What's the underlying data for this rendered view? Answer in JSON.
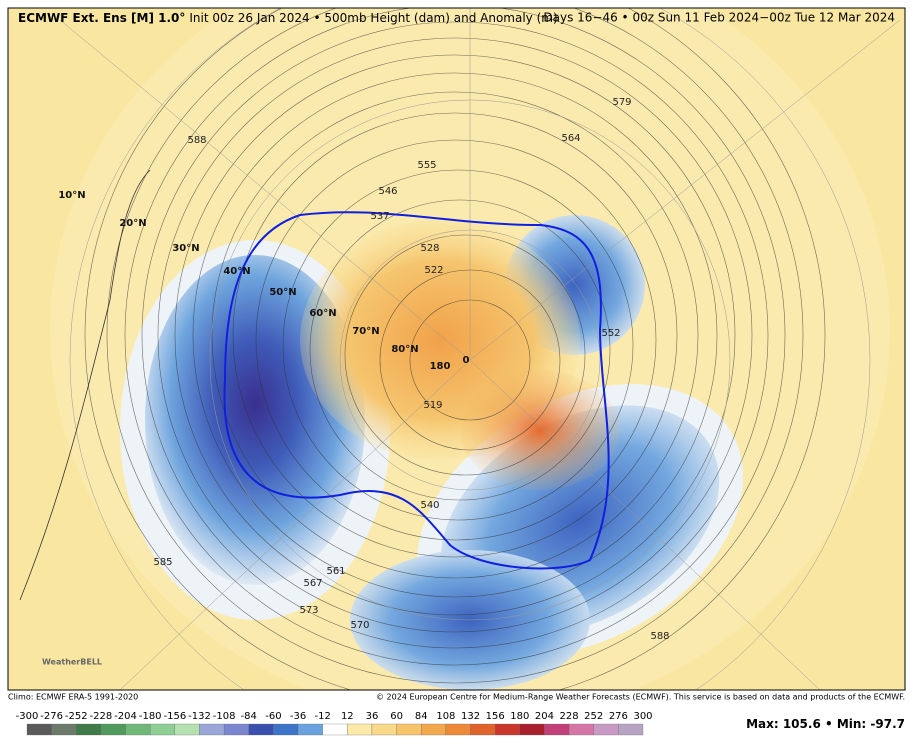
{
  "header": {
    "title_bold": "ECMWF Ext. Ens [M] 1.0°",
    "title_rest": "Init 00z 26 Jan 2024 • 500mb Height (dam) and Anomaly (m)",
    "valid": "Days 16−46 • 00z Sun 11 Feb 2024−00z Tue 12 Mar 2024"
  },
  "footer": {
    "climo": "Climo: ECMWF ERA-5 1991-2020",
    "copyright": "© 2024 European Centre for Medium-Range Weather Forecasts (ECMWF). This service is based on data and products of the ECMWF.",
    "max": "Max: 105.6",
    "min": "Min: -97.7",
    "logo": "WeatherBELL"
  },
  "colorbar": {
    "labels": [
      -300,
      -276,
      -252,
      -228,
      -204,
      -180,
      -156,
      -132,
      -108,
      -84,
      -60,
      -36,
      -12,
      12,
      36,
      60,
      84,
      108,
      132,
      156,
      180,
      204,
      228,
      252,
      276,
      300
    ],
    "colors": [
      "#5a5a5a",
      "#6b7a6b",
      "#3f7a4a",
      "#4f9a5c",
      "#6fb878",
      "#8fcf95",
      "#b5e0b0",
      "#9aa7d8",
      "#7a86cf",
      "#3a4fae",
      "#3d74c8",
      "#6aa2de",
      "#ffffff",
      "#fbeaa8",
      "#f9d98a",
      "#f6c46a",
      "#f2a94e",
      "#ec8a3a",
      "#e0622c",
      "#c9362a",
      "#a8202e",
      "#c2407a",
      "#d477a8",
      "#c99ac4",
      "#b7a3c2"
    ]
  },
  "map": {
    "latitude_labels": [
      "10°N",
      "20°N",
      "30°N",
      "40°N",
      "50°N",
      "60°N",
      "70°N",
      "80°N"
    ],
    "contour_labels": [
      "588",
      "579",
      "564",
      "555",
      "546",
      "537",
      "528",
      "522",
      "519",
      "552",
      "561",
      "567",
      "573",
      "570",
      "585",
      "588",
      "540"
    ],
    "longitude_labels": [
      "180",
      "0"
    ]
  }
}
